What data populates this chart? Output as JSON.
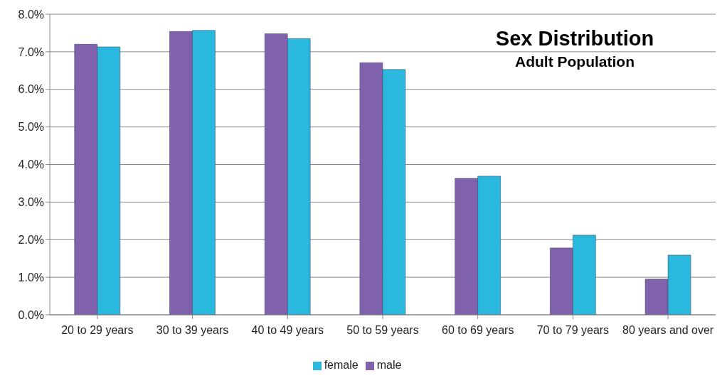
{
  "chart_data": {
    "type": "bar",
    "title": "Sex Distribution",
    "subtitle": "Adult Population",
    "categories": [
      "20 to 29 years",
      "30 to 39 years",
      "40 to 49 years",
      "50 to 59 years",
      "60 to 69 years",
      "70 to 79 years",
      "80 years and over"
    ],
    "series": [
      {
        "name": "male",
        "color": "#8062ac",
        "values": [
          7.2,
          7.54,
          7.48,
          6.71,
          3.63,
          1.78,
          0.95
        ]
      },
      {
        "name": "female",
        "color": "#2ab8de",
        "values": [
          7.13,
          7.57,
          7.35,
          6.53,
          3.69,
          2.12,
          1.59
        ]
      }
    ],
    "ylim": [
      0,
      8
    ],
    "yticks": [
      {
        "value": 0,
        "label": "0.0%"
      },
      {
        "value": 1,
        "label": "1.0%"
      },
      {
        "value": 2,
        "label": "2.0%"
      },
      {
        "value": 3,
        "label": "3.0%"
      },
      {
        "value": 4,
        "label": "4.0%"
      },
      {
        "value": 5,
        "label": "5.0%"
      },
      {
        "value": 6,
        "label": "6.0%"
      },
      {
        "value": 7,
        "label": "7.0%"
      },
      {
        "value": 8,
        "label": "8.0%"
      }
    ],
    "grid": "y",
    "legend": "bottom"
  }
}
